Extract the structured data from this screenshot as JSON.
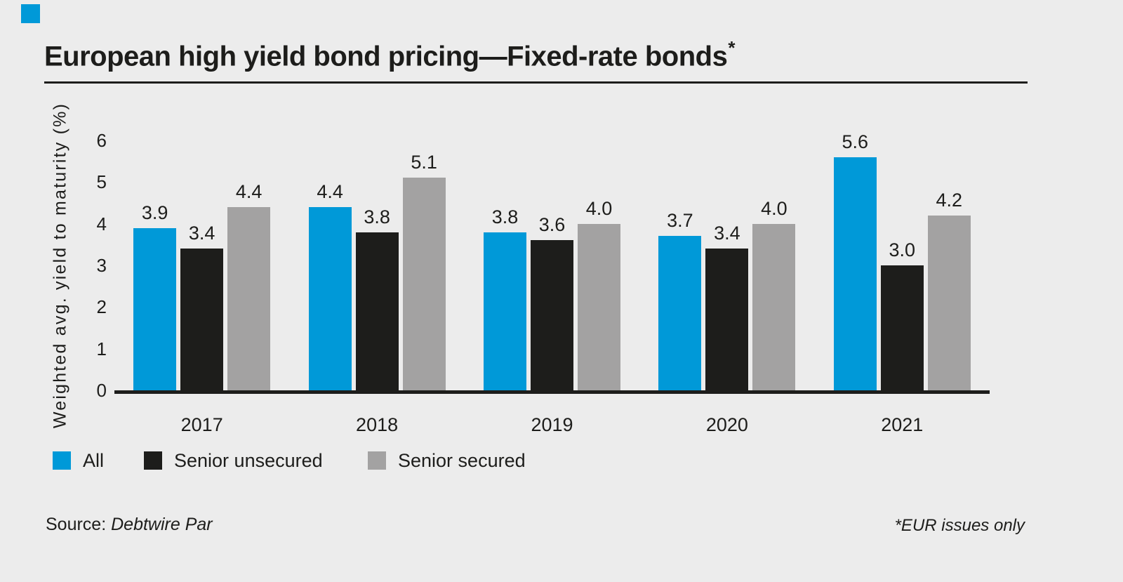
{
  "colors": {
    "background": "#ececec",
    "text": "#1d1d1b",
    "accent": "#0099d8",
    "axis": "#1d1d1b"
  },
  "accent_square": {
    "color": "#0099d8"
  },
  "title": "European high yield bond pricing—Fixed-rate bonds",
  "title_footnote_marker": "*",
  "chart_data": {
    "type": "bar",
    "categories": [
      "2017",
      "2018",
      "2019",
      "2020",
      "2021"
    ],
    "series": [
      {
        "name": "All",
        "color": "#0099d8",
        "values": [
          3.9,
          4.4,
          3.8,
          3.7,
          5.6
        ]
      },
      {
        "name": "Senior unsecured",
        "color": "#1d1d1b",
        "values": [
          3.4,
          3.8,
          3.6,
          3.4,
          3.0
        ]
      },
      {
        "name": "Senior secured",
        "color": "#a3a2a2",
        "values": [
          4.4,
          5.1,
          4.0,
          4.0,
          4.2
        ]
      }
    ],
    "title": "European high yield bond pricing—Fixed-rate bonds*",
    "xlabel": "",
    "ylabel": "Weighted avg. yield to maturity (%)",
    "yticks": [
      0,
      1,
      2,
      3,
      4,
      5,
      6
    ],
    "ylim": [
      0,
      6
    ],
    "grid": false,
    "legend_position": "bottom",
    "value_labels": "one-decimal above each bar"
  },
  "footer": {
    "source_label": "Source:",
    "source_value": "Debtwire Par",
    "footnote": "*EUR issues only"
  }
}
